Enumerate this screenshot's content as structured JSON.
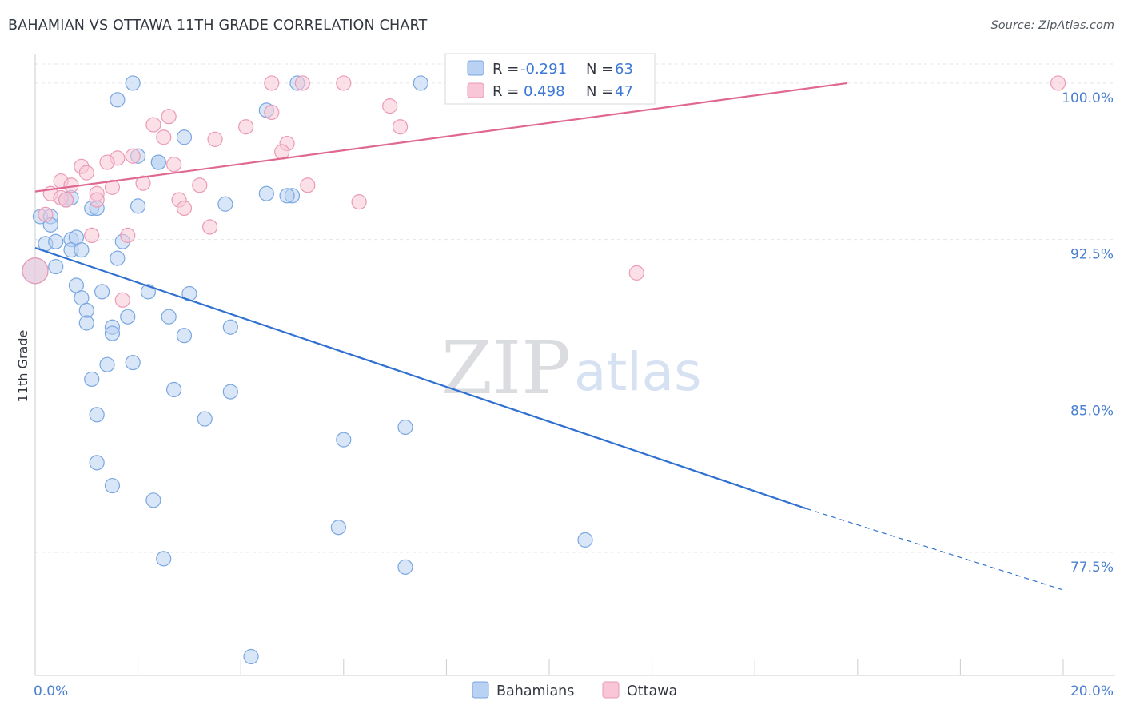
{
  "title": "BAHAMIAN VS OTTAWA 11TH GRADE CORRELATION CHART",
  "source": "Source: ZipAtlas.com",
  "watermark": {
    "zip": "ZIP",
    "atlas": "atlas"
  },
  "colors": {
    "bahamians_fill": "#b9d1f2",
    "bahamians_stroke": "#7aa7e0",
    "bahamians_line": "#3070d0",
    "ottawa_fill": "#f8c6d6",
    "ottawa_stroke": "#eb9ab5",
    "ottawa_line": "#e06890",
    "grid": "#e3e5e8",
    "tick_label": "#4a7fd1"
  },
  "chart_data": {
    "type": "scatter",
    "title": "BAHAMIAN VS OTTAWA 11TH GRADE CORRELATION CHART",
    "xlabel": "",
    "ylabel": "11th Grade",
    "xlim": [
      0,
      20
    ],
    "ylim": [
      71.6,
      101.3
    ],
    "x_tick_labels": [
      {
        "value": 0,
        "label": "0.0%"
      },
      {
        "value": 20,
        "label": "20.0%"
      }
    ],
    "y_tick_labels": [
      {
        "value": 77.5,
        "label": "77.5%"
      },
      {
        "value": 85.0,
        "label": "85.0%"
      },
      {
        "value": 92.5,
        "label": "92.5%"
      },
      {
        "value": 100.0,
        "label": "100.0%"
      }
    ],
    "grid": true,
    "legend": {
      "placement": "top-center",
      "entries": [
        {
          "series": "Bahamians",
          "r_label": "R =",
          "r_value": "-0.291",
          "n_label": "N =",
          "n_value": "63"
        },
        {
          "series": "Ottawa",
          "r_label": "R =",
          "r_value": "0.498",
          "n_label": "N =",
          "n_value": "47"
        }
      ]
    },
    "series": [
      {
        "name": "Bahamians",
        "trend": {
          "x0": 0,
          "y0": 92.1,
          "x1": 15.0,
          "y1": 79.6,
          "dash_to_x": 20,
          "dash_to_y": 75.7
        },
        "points": [
          [
            1.9,
            100.0
          ],
          [
            5.1,
            100.0
          ],
          [
            7.5,
            100.0
          ],
          [
            1.6,
            99.2
          ],
          [
            4.5,
            98.7
          ],
          [
            2.9,
            97.4
          ],
          [
            2.0,
            96.5
          ],
          [
            2.4,
            96.2
          ],
          [
            2.4,
            96.2
          ],
          [
            0.7,
            94.5
          ],
          [
            0.6,
            94.4
          ],
          [
            4.5,
            94.7
          ],
          [
            5.0,
            94.6
          ],
          [
            4.9,
            94.6
          ],
          [
            3.7,
            94.2
          ],
          [
            1.1,
            94.0
          ],
          [
            1.2,
            94.0
          ],
          [
            2.0,
            94.1
          ],
          [
            0.1,
            93.6
          ],
          [
            0.3,
            93.6
          ],
          [
            0.3,
            93.2
          ],
          [
            0.2,
            92.3
          ],
          [
            0.4,
            92.4
          ],
          [
            0.7,
            92.5
          ],
          [
            0.8,
            92.6
          ],
          [
            0.7,
            92.0
          ],
          [
            0.9,
            92.0
          ],
          [
            1.7,
            92.4
          ],
          [
            1.6,
            91.6
          ],
          [
            0.4,
            91.2
          ],
          [
            0.0,
            91.0
          ],
          [
            0.8,
            90.3
          ],
          [
            1.3,
            90.0
          ],
          [
            2.2,
            90.0
          ],
          [
            3.0,
            89.9
          ],
          [
            0.9,
            89.7
          ],
          [
            1.0,
            89.1
          ],
          [
            1.8,
            88.8
          ],
          [
            2.6,
            88.8
          ],
          [
            1.0,
            88.5
          ],
          [
            1.5,
            88.3
          ],
          [
            3.8,
            88.3
          ],
          [
            1.5,
            88.0
          ],
          [
            2.9,
            87.9
          ],
          [
            1.4,
            86.5
          ],
          [
            1.9,
            86.6
          ],
          [
            1.1,
            85.8
          ],
          [
            2.7,
            85.3
          ],
          [
            3.8,
            85.2
          ],
          [
            1.2,
            84.1
          ],
          [
            3.3,
            83.9
          ],
          [
            7.2,
            83.5
          ],
          [
            6.0,
            82.9
          ],
          [
            1.2,
            81.8
          ],
          [
            1.5,
            80.7
          ],
          [
            2.3,
            80.0
          ],
          [
            5.9,
            78.7
          ],
          [
            10.7,
            78.1
          ],
          [
            2.5,
            77.2
          ],
          [
            7.2,
            76.8
          ],
          [
            4.2,
            72.5
          ]
        ]
      },
      {
        "name": "Ottawa",
        "trend": {
          "x0": 0,
          "y0": 94.8,
          "x1": 15.8,
          "y1": 100.0
        },
        "points": [
          [
            4.6,
            100.0
          ],
          [
            5.2,
            100.0
          ],
          [
            6.0,
            100.0
          ],
          [
            8.2,
            100.0
          ],
          [
            9.3,
            100.0
          ],
          [
            19.9,
            100.0
          ],
          [
            6.9,
            98.9
          ],
          [
            4.6,
            98.6
          ],
          [
            2.6,
            98.4
          ],
          [
            2.3,
            98.0
          ],
          [
            4.1,
            97.9
          ],
          [
            7.1,
            97.9
          ],
          [
            2.5,
            97.4
          ],
          [
            3.5,
            97.3
          ],
          [
            4.9,
            97.1
          ],
          [
            4.8,
            96.7
          ],
          [
            1.9,
            96.5
          ],
          [
            1.6,
            96.4
          ],
          [
            2.7,
            96.1
          ],
          [
            1.4,
            96.2
          ],
          [
            0.9,
            96.0
          ],
          [
            1.0,
            95.7
          ],
          [
            0.5,
            95.3
          ],
          [
            2.1,
            95.2
          ],
          [
            3.2,
            95.1
          ],
          [
            5.3,
            95.1
          ],
          [
            0.7,
            95.1
          ],
          [
            1.5,
            95.0
          ],
          [
            1.2,
            94.7
          ],
          [
            0.3,
            94.7
          ],
          [
            0.5,
            94.5
          ],
          [
            2.8,
            94.4
          ],
          [
            1.2,
            94.4
          ],
          [
            0.6,
            94.4
          ],
          [
            6.3,
            94.3
          ],
          [
            2.9,
            94.0
          ],
          [
            0.2,
            93.7
          ],
          [
            3.4,
            93.1
          ],
          [
            1.1,
            92.7
          ],
          [
            1.8,
            92.7
          ],
          [
            11.7,
            90.9
          ],
          [
            1.7,
            89.6
          ],
          [
            0.0,
            91.0
          ]
        ]
      }
    ]
  },
  "bottom_legend": [
    {
      "label": "Bahamians"
    },
    {
      "label": "Ottawa"
    }
  ]
}
